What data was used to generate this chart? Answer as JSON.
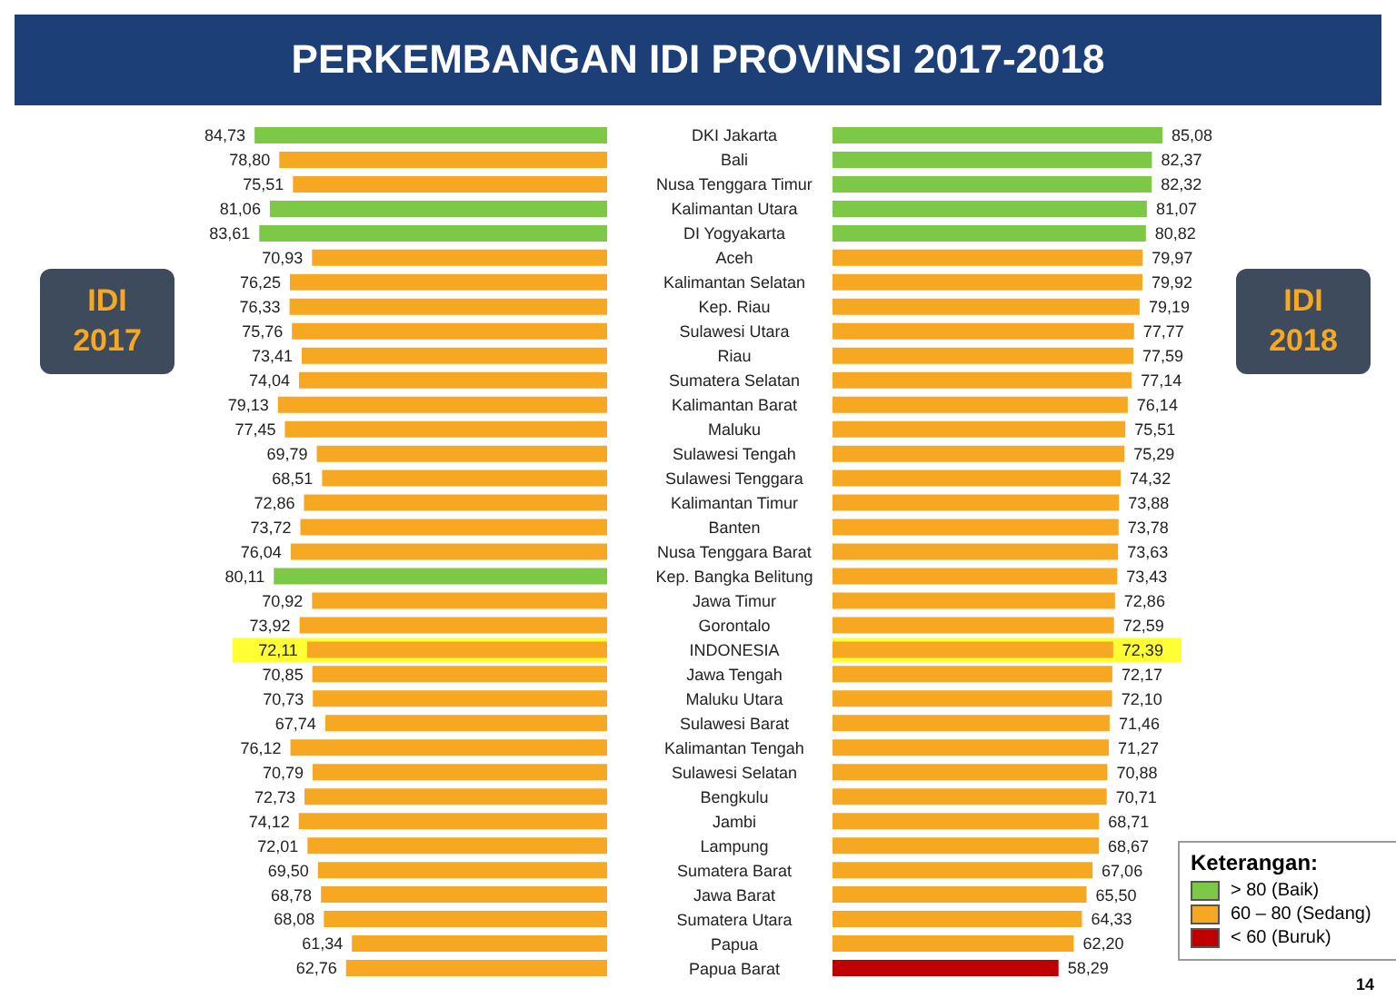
{
  "chart_data": [
    {
      "type": "bar",
      "orientation": "horizontal",
      "title": "PERKEMBANGAN IDI PROVINSI 2017-2018",
      "data_labels": true,
      "tick_labels": "y",
      "xlim": [
        90,
        0
      ],
      "categories": [
        "DKI Jakarta",
        "Bali",
        "Nusa Tenggara Timur",
        "Kalimantan Utara",
        "DI Yogyakarta",
        "Aceh",
        "Kalimantan Selatan",
        "Kep. Riau",
        "Sulawesi Utara",
        "Riau",
        "Sumatera Selatan",
        "Kalimantan Barat",
        "Maluku",
        "Sulawesi Tengah",
        "Sulawesi Tenggara",
        "Kalimantan Timur",
        "Banten",
        "Nusa Tenggara Barat",
        "Kep. Bangka Belitung",
        "Jawa Timur",
        "Gorontalo",
        "INDONESIA",
        "Jawa Tengah",
        "Maluku Utara",
        "Sulawesi Barat",
        "Kalimantan Tengah",
        "Sulawesi Selatan",
        "Bengkulu",
        "Jambi",
        "Lampung",
        "Sumatera Barat",
        "Jawa Barat",
        "Sumatera Utara",
        "Papua",
        "Papua Barat"
      ],
      "series": [
        {
          "name": "IDI 2017",
          "values": [
            84.73,
            78.8,
            75.51,
            81.06,
            83.61,
            70.93,
            76.25,
            76.33,
            75.76,
            73.41,
            74.04,
            79.13,
            77.45,
            69.79,
            68.51,
            72.86,
            73.72,
            76.04,
            80.11,
            70.92,
            73.92,
            72.11,
            70.85,
            70.73,
            67.74,
            76.12,
            70.79,
            72.73,
            74.12,
            72.01,
            69.5,
            68.78,
            68.08,
            61.34,
            62.76
          ],
          "value_labels": [
            "84,73",
            "78,80",
            "75,51",
            "81,06",
            "83,61",
            "70,93",
            "76,25",
            "76,33",
            "75,76",
            "73,41",
            "74,04",
            "79,13",
            "77,45",
            "69,79",
            "68,51",
            "72,86",
            "73,72",
            "76,04",
            "80,11",
            "70,92",
            "73,92",
            "72,11",
            "70,85",
            "70,73",
            "67,74",
            "76,12",
            "70,79",
            "72,73",
            "74,12",
            "72,01",
            "69,50",
            "68,78",
            "68,08",
            "61,34",
            "62,76"
          ],
          "colors": [
            "#7dc846",
            "#f7a823",
            "#f7a823",
            "#7dc846",
            "#7dc846",
            "#f7a823",
            "#f7a823",
            "#f7a823",
            "#f7a823",
            "#f7a823",
            "#f7a823",
            "#f7a823",
            "#f7a823",
            "#f7a823",
            "#f7a823",
            "#f7a823",
            "#f7a823",
            "#f7a823",
            "#7dc846",
            "#f7a823",
            "#f7a823",
            "#f7a823",
            "#f7a823",
            "#f7a823",
            "#f7a823",
            "#f7a823",
            "#f7a823",
            "#f7a823",
            "#f7a823",
            "#f7a823",
            "#f7a823",
            "#f7a823",
            "#f7a823",
            "#f7a823",
            "#f7a823"
          ]
        }
      ],
      "bands": [
        {
          "axis": "y",
          "from": "INDONESIA",
          "to": "INDONESIA",
          "color": "#ffff33"
        }
      ]
    },
    {
      "type": "bar",
      "orientation": "horizontal",
      "data_labels": true,
      "tick_labels": false,
      "xlim": [
        0,
        90
      ],
      "legend_title": "Keterangan:",
      "categories": [
        "DKI Jakarta",
        "Bali",
        "Nusa Tenggara Timur",
        "Kalimantan Utara",
        "DI Yogyakarta",
        "Aceh",
        "Kalimantan Selatan",
        "Kep. Riau",
        "Sulawesi Utara",
        "Riau",
        "Sumatera Selatan",
        "Kalimantan Barat",
        "Maluku",
        "Sulawesi Tengah",
        "Sulawesi Tenggara",
        "Kalimantan Timur",
        "Banten",
        "Nusa Tenggara Barat",
        "Kep. Bangka Belitung",
        "Jawa Timur",
        "Gorontalo",
        "INDONESIA",
        "Jawa Tengah",
        "Maluku Utara",
        "Sulawesi Barat",
        "Kalimantan Tengah",
        "Sulawesi Selatan",
        "Bengkulu",
        "Jambi",
        "Lampung",
        "Sumatera Barat",
        "Jawa Barat",
        "Sumatera Utara",
        "Papua",
        "Papua Barat"
      ],
      "series": [
        {
          "name": "IDI 2018",
          "values": [
            85.08,
            82.37,
            82.32,
            81.07,
            80.82,
            79.97,
            79.92,
            79.19,
            77.77,
            77.59,
            77.14,
            76.14,
            75.51,
            75.29,
            74.32,
            73.88,
            73.78,
            73.63,
            73.43,
            72.86,
            72.59,
            72.39,
            72.17,
            72.1,
            71.46,
            71.27,
            70.88,
            70.71,
            68.71,
            68.67,
            67.06,
            65.5,
            64.33,
            62.2,
            58.29
          ],
          "value_labels": [
            "85,08",
            "82,37",
            "82,32",
            "81,07",
            "80,82",
            "79,97",
            "79,92",
            "79,19",
            "77,77",
            "77,59",
            "77,14",
            "76,14",
            "75,51",
            "75,29",
            "74,32",
            "73,88",
            "73,78",
            "73,63",
            "73,43",
            "72,86",
            "72,59",
            "72,39",
            "72,17",
            "72,10",
            "71,46",
            "71,27",
            "70,88",
            "70,71",
            "68,71",
            "68,67",
            "67,06",
            "65,50",
            "64,33",
            "62,20",
            "58,29"
          ],
          "colors": [
            "#7dc846",
            "#7dc846",
            "#7dc846",
            "#7dc846",
            "#7dc846",
            "#f7a823",
            "#f7a823",
            "#f7a823",
            "#f7a823",
            "#f7a823",
            "#f7a823",
            "#f7a823",
            "#f7a823",
            "#f7a823",
            "#f7a823",
            "#f7a823",
            "#f7a823",
            "#f7a823",
            "#f7a823",
            "#f7a823",
            "#f7a823",
            "#f7a823",
            "#f7a823",
            "#f7a823",
            "#f7a823",
            "#f7a823",
            "#f7a823",
            "#f7a823",
            "#f7a823",
            "#f7a823",
            "#f7a823",
            "#f7a823",
            "#f7a823",
            "#f7a823",
            "#c00000"
          ]
        }
      ],
      "bands": [
        {
          "axis": "y",
          "from": "INDONESIA",
          "to": "INDONESIA",
          "color": "#ffff33"
        }
      ],
      "annotations": [
        "> 80 (Baik)",
        "60 – 80 (Sedang)",
        "< 60 (Buruk)",
        "14"
      ]
    }
  ]
}
